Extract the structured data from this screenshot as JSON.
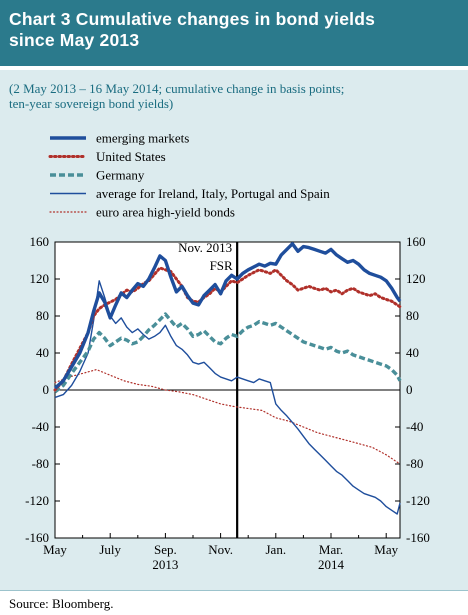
{
  "header": {
    "line1": "Chart 3 Cumulative changes in bond yields",
    "line2": "since May 2013"
  },
  "subtitle": {
    "line1": "(2 May 2013 – 16 May 2014; cumulative change in basis points;",
    "line2": "ten-year sovereign bond yields)"
  },
  "source": "Source: Bloomberg.",
  "colors": {
    "header_bg": "#2b7a8c",
    "panel_bg": "#dcebee",
    "emerging": "#1f4e9c",
    "us": "#b0302a",
    "germany": "#4a8f99",
    "periphery": "#1f4e9c",
    "highyield": "#b0302a"
  },
  "chart_data": {
    "type": "line",
    "title": "",
    "xlabel": "",
    "ylabel": "",
    "ylim": [
      -160,
      160
    ],
    "yticks": [
      -160,
      -120,
      -80,
      -40,
      0,
      40,
      80,
      120,
      160
    ],
    "x_unit": "months since 2 May 2013",
    "xlim": [
      0,
      12.5
    ],
    "xticks": [
      {
        "label": "May",
        "x": 0
      },
      {
        "label": "July",
        "x": 2
      },
      {
        "label": "Sep.",
        "x": 4
      },
      {
        "label": "Nov.",
        "x": 6
      },
      {
        "label": "Jan.",
        "x": 8
      },
      {
        "label": "Mar.",
        "x": 10
      },
      {
        "label": "May",
        "x": 12
      }
    ],
    "year_labels": [
      {
        "label": "2013",
        "x": 4
      },
      {
        "label": "2014",
        "x": 10
      }
    ],
    "annotation": {
      "label1": "Nov. 2013",
      "label2": "FSR",
      "x": 6.6
    },
    "legend_position": "top-left",
    "series": [
      {
        "name": "emerging markets",
        "style": "thick",
        "x": [
          0,
          0.3,
          0.6,
          0.9,
          1.2,
          1.4,
          1.6,
          1.8,
          2.0,
          2.2,
          2.4,
          2.6,
          2.8,
          3.0,
          3.2,
          3.4,
          3.6,
          3.8,
          4.0,
          4.2,
          4.4,
          4.6,
          4.8,
          5.0,
          5.2,
          5.4,
          5.6,
          5.8,
          6.0,
          6.2,
          6.4,
          6.6,
          6.8,
          7.0,
          7.2,
          7.4,
          7.6,
          7.8,
          8.0,
          8.2,
          8.4,
          8.6,
          8.8,
          9.0,
          9.2,
          9.4,
          9.6,
          9.8,
          10.0,
          10.2,
          10.4,
          10.6,
          10.8,
          11.0,
          11.2,
          11.4,
          11.6,
          11.8,
          12.0,
          12.2,
          12.4,
          12.5
        ],
        "y": [
          2,
          10,
          25,
          40,
          62,
          85,
          105,
          95,
          78,
          92,
          105,
          100,
          108,
          115,
          112,
          120,
          132,
          145,
          140,
          122,
          106,
          112,
          102,
          94,
          92,
          102,
          108,
          114,
          104,
          118,
          124,
          120,
          126,
          130,
          133,
          136,
          134,
          137,
          136,
          146,
          152,
          158,
          150,
          155,
          154,
          152,
          150,
          148,
          152,
          146,
          142,
          138,
          140,
          136,
          130,
          126,
          124,
          122,
          118,
          110,
          100,
          96
        ]
      },
      {
        "name": "United States",
        "style": "dotted",
        "x": [
          0,
          0.3,
          0.6,
          0.9,
          1.2,
          1.4,
          1.6,
          1.8,
          2.0,
          2.2,
          2.4,
          2.6,
          2.8,
          3.0,
          3.2,
          3.4,
          3.6,
          3.8,
          4.0,
          4.2,
          4.4,
          4.6,
          4.8,
          5.0,
          5.2,
          5.4,
          5.6,
          5.8,
          6.0,
          6.2,
          6.4,
          6.6,
          6.8,
          7.0,
          7.2,
          7.4,
          7.6,
          7.8,
          8.0,
          8.2,
          8.4,
          8.6,
          8.8,
          9.0,
          9.2,
          9.4,
          9.6,
          9.8,
          10.0,
          10.2,
          10.4,
          10.6,
          10.8,
          11.0,
          11.2,
          11.4,
          11.6,
          11.8,
          12.0,
          12.2,
          12.4,
          12.5
        ],
        "y": [
          0,
          10,
          28,
          45,
          62,
          80,
          88,
          92,
          95,
          98,
          103,
          108,
          106,
          110,
          115,
          118,
          125,
          132,
          130,
          128,
          120,
          112,
          100,
          96,
          95,
          100,
          104,
          110,
          106,
          112,
          118,
          116,
          120,
          124,
          127,
          130,
          128,
          126,
          130,
          124,
          118,
          114,
          108,
          110,
          112,
          110,
          108,
          110,
          106,
          108,
          104,
          108,
          110,
          106,
          104,
          102,
          104,
          100,
          98,
          96,
          92,
          90
        ]
      },
      {
        "name": "Germany",
        "style": "dashed",
        "x": [
          0,
          0.3,
          0.6,
          0.9,
          1.2,
          1.4,
          1.6,
          1.8,
          2.0,
          2.2,
          2.4,
          2.6,
          2.8,
          3.0,
          3.2,
          3.4,
          3.6,
          3.8,
          4.0,
          4.2,
          4.4,
          4.6,
          4.8,
          5.0,
          5.2,
          5.4,
          5.6,
          5.8,
          6.0,
          6.2,
          6.4,
          6.6,
          6.8,
          7.0,
          7.2,
          7.4,
          7.6,
          7.8,
          8.0,
          8.2,
          8.4,
          8.6,
          8.8,
          9.0,
          9.2,
          9.4,
          9.6,
          9.8,
          10.0,
          10.2,
          10.4,
          10.6,
          10.8,
          11.0,
          11.2,
          11.4,
          11.6,
          11.8,
          12.0,
          12.2,
          12.4,
          12.5
        ],
        "y": [
          -2,
          5,
          18,
          30,
          42,
          55,
          62,
          56,
          48,
          52,
          56,
          54,
          50,
          52,
          58,
          65,
          70,
          76,
          82,
          75,
          68,
          72,
          66,
          58,
          60,
          64,
          58,
          52,
          50,
          56,
          60,
          58,
          64,
          68,
          70,
          74,
          72,
          70,
          72,
          68,
          64,
          60,
          56,
          52,
          50,
          48,
          46,
          44,
          46,
          42,
          40,
          42,
          38,
          36,
          34,
          32,
          30,
          28,
          26,
          22,
          16,
          10
        ]
      },
      {
        "name": "average for Ireland, Italy, Portugal and Spain",
        "style": "thin",
        "x": [
          0,
          0.3,
          0.6,
          0.9,
          1.2,
          1.4,
          1.6,
          1.8,
          2.0,
          2.2,
          2.4,
          2.6,
          2.8,
          3.0,
          3.2,
          3.4,
          3.6,
          3.8,
          4.0,
          4.2,
          4.4,
          4.6,
          4.8,
          5.0,
          5.2,
          5.4,
          5.6,
          5.8,
          6.0,
          6.2,
          6.4,
          6.6,
          6.8,
          7.0,
          7.2,
          7.4,
          7.6,
          7.8,
          8.0,
          8.2,
          8.4,
          8.6,
          8.8,
          9.0,
          9.2,
          9.4,
          9.6,
          9.8,
          10.0,
          10.2,
          10.4,
          10.6,
          10.8,
          11.0,
          11.2,
          11.4,
          11.6,
          11.8,
          12.0,
          12.2,
          12.4,
          12.5
        ],
        "y": [
          -8,
          -5,
          5,
          20,
          40,
          75,
          118,
          100,
          80,
          72,
          78,
          68,
          62,
          66,
          60,
          55,
          58,
          62,
          70,
          58,
          48,
          44,
          38,
          30,
          28,
          30,
          24,
          18,
          14,
          12,
          10,
          14,
          12,
          10,
          8,
          12,
          10,
          8,
          -15,
          -22,
          -28,
          -35,
          -42,
          -50,
          -58,
          -64,
          -70,
          -76,
          -82,
          -88,
          -92,
          -98,
          -104,
          -108,
          -112,
          -114,
          -116,
          -120,
          -126,
          -130,
          -134,
          -122
        ]
      },
      {
        "name": "euro area high-yield bonds",
        "style": "fine-dotted",
        "x": [
          0,
          0.5,
          1.0,
          1.5,
          2.0,
          2.5,
          3.0,
          3.5,
          4.0,
          4.5,
          5.0,
          5.5,
          6.0,
          6.5,
          7.0,
          7.5,
          8.0,
          8.5,
          9.0,
          9.5,
          10.0,
          10.5,
          11.0,
          11.5,
          12.0,
          12.5
        ],
        "y": [
          8,
          14,
          18,
          22,
          16,
          10,
          6,
          4,
          0,
          -2,
          -5,
          -10,
          -15,
          -18,
          -20,
          -22,
          -30,
          -34,
          -40,
          -46,
          -50,
          -54,
          -58,
          -62,
          -70,
          -80
        ]
      }
    ]
  }
}
